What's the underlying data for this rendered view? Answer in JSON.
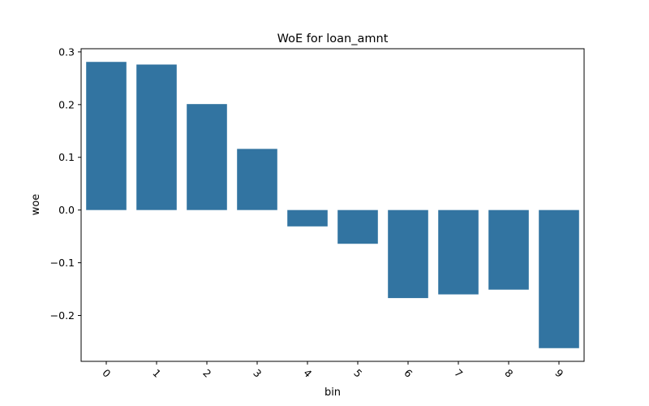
{
  "chart_data": {
    "type": "bar",
    "title": "WoE for loan_amnt",
    "xlabel": "bin",
    "ylabel": "woe",
    "categories": [
      "0",
      "1",
      "2",
      "3",
      "4",
      "5",
      "6",
      "7",
      "8",
      "9"
    ],
    "values": [
      0.281,
      0.276,
      0.201,
      0.116,
      -0.031,
      -0.064,
      -0.167,
      -0.16,
      -0.151,
      -0.262
    ],
    "ylim": [
      -0.287,
      0.306
    ],
    "yticks": [
      -0.2,
      -0.1,
      0.0,
      0.1,
      0.2,
      0.3
    ],
    "ytick_labels": [
      "−0.2",
      "−0.1",
      "0.0",
      "0.1",
      "0.2",
      "0.3"
    ],
    "bar_color": "#3274a1",
    "grid": false,
    "x_tick_rotation": "45"
  }
}
